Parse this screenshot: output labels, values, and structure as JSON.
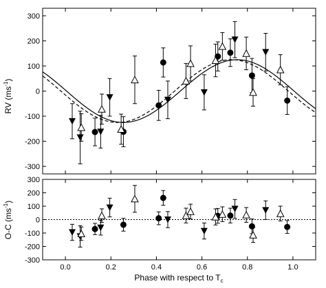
{
  "chart_data": [
    {
      "type": "scatter",
      "ylabel": "RV (ms",
      "ylabel_sup": "-1",
      "ylabel_tail": ")",
      "xlim": [
        -0.1,
        1.1
      ],
      "ylim": [
        -330,
        330
      ],
      "yticks": [
        -300,
        -200,
        -100,
        0,
        100,
        200,
        300
      ],
      "xticks": [
        0.0,
        0.2,
        0.4,
        0.6,
        0.8,
        1.0
      ],
      "ytick_labels": [
        "-300",
        "-200",
        "-100",
        "0",
        "100",
        "200",
        "300"
      ],
      "series": [
        {
          "marker": "filled-circle",
          "points": [
            {
              "x": 0.13,
              "y": -163,
              "err": 55
            },
            {
              "x": 0.255,
              "y": -162,
              "err": 60
            },
            {
              "x": 0.41,
              "y": -57,
              "err": 60
            },
            {
              "x": 0.43,
              "y": 114,
              "err": 58
            },
            {
              "x": 0.67,
              "y": 138,
              "err": 58
            },
            {
              "x": 0.725,
              "y": 153,
              "err": 55
            },
            {
              "x": 0.82,
              "y": 62,
              "err": 68
            },
            {
              "x": 0.975,
              "y": -38,
              "err": 55
            }
          ]
        },
        {
          "marker": "filled-triangle-down",
          "points": [
            {
              "x": 0.03,
              "y": -120,
              "err": 70
            },
            {
              "x": 0.065,
              "y": -185,
              "err": 105
            },
            {
              "x": 0.155,
              "y": -162,
              "err": 65
            },
            {
              "x": 0.195,
              "y": -25,
              "err": 75
            },
            {
              "x": 0.45,
              "y": -35,
              "err": 75
            },
            {
              "x": 0.61,
              "y": -5,
              "err": 70
            },
            {
              "x": 0.745,
              "y": 205,
              "err": 72
            },
            {
              "x": 0.88,
              "y": 155,
              "err": 75
            }
          ]
        },
        {
          "marker": "open-triangle-up",
          "points": [
            {
              "x": 0.07,
              "y": -145,
              "err": 55
            },
            {
              "x": 0.16,
              "y": -72,
              "err": 60
            },
            {
              "x": 0.245,
              "y": -152,
              "err": 60
            },
            {
              "x": 0.305,
              "y": 45,
              "err": 95
            },
            {
              "x": 0.53,
              "y": 40,
              "err": 70
            },
            {
              "x": 0.55,
              "y": 110,
              "err": 70
            },
            {
              "x": 0.66,
              "y": 122,
              "err": 65
            },
            {
              "x": 0.69,
              "y": 178,
              "err": 55
            },
            {
              "x": 0.795,
              "y": 150,
              "err": 65
            },
            {
              "x": 0.825,
              "y": -5,
              "err": 55
            },
            {
              "x": 0.945,
              "y": 85,
              "err": 60
            }
          ]
        }
      ],
      "models": [
        {
          "style": "solid",
          "K": 125,
          "phase_shift": 0.755
        },
        {
          "style": "dashed",
          "K": 125,
          "phase_shift": 0.73
        }
      ]
    },
    {
      "type": "scatter",
      "xlabel": "Phase with respect to T",
      "xlabel_sub": "c",
      "ylabel": "O-C (ms",
      "ylabel_sup": "-1",
      "ylabel_tail": ")",
      "xlim": [
        -0.1,
        1.1
      ],
      "ylim": [
        -300,
        300
      ],
      "yticks": [
        -300,
        -200,
        -100,
        0,
        100,
        200,
        300
      ],
      "xticks": [
        0.0,
        0.2,
        0.4,
        0.6,
        0.8,
        1.0
      ],
      "ytick_labels": [
        "-300",
        "-200",
        "-100",
        "0",
        "100",
        "200",
        "300"
      ],
      "xtick_labels": [
        "0.0",
        "0.2",
        "0.4",
        "0.6",
        "0.8",
        "1.0"
      ],
      "zero_line": "dotted",
      "series": [
        {
          "marker": "filled-circle",
          "points": [
            {
              "x": 0.13,
              "y": -70,
              "err": 42
            },
            {
              "x": 0.255,
              "y": -38,
              "err": 48
            },
            {
              "x": 0.41,
              "y": 10,
              "err": 48
            },
            {
              "x": 0.43,
              "y": 162,
              "err": 55
            },
            {
              "x": 0.67,
              "y": 28,
              "err": 55
            },
            {
              "x": 0.725,
              "y": 30,
              "err": 55
            },
            {
              "x": 0.82,
              "y": -50,
              "err": 55
            },
            {
              "x": 0.975,
              "y": -55,
              "err": 48
            }
          ]
        },
        {
          "marker": "filled-triangle-down",
          "points": [
            {
              "x": 0.03,
              "y": -95,
              "err": 60
            },
            {
              "x": 0.065,
              "y": -125,
              "err": 80
            },
            {
              "x": 0.155,
              "y": -60,
              "err": 55
            },
            {
              "x": 0.195,
              "y": 90,
              "err": 70
            },
            {
              "x": 0.45,
              "y": 0,
              "err": 60
            },
            {
              "x": 0.61,
              "y": -85,
              "err": 60
            },
            {
              "x": 0.745,
              "y": 80,
              "err": 70
            },
            {
              "x": 0.88,
              "y": 70,
              "err": 70
            }
          ]
        },
        {
          "marker": "open-triangle-up",
          "points": [
            {
              "x": 0.07,
              "y": -105,
              "err": 50
            },
            {
              "x": 0.16,
              "y": 30,
              "err": 50
            },
            {
              "x": 0.305,
              "y": 155,
              "err": 100
            },
            {
              "x": 0.53,
              "y": 30,
              "err": 55
            },
            {
              "x": 0.55,
              "y": 60,
              "err": 55
            },
            {
              "x": 0.66,
              "y": 20,
              "err": 60
            },
            {
              "x": 0.69,
              "y": 40,
              "err": 55
            },
            {
              "x": 0.795,
              "y": 35,
              "err": 55
            },
            {
              "x": 0.825,
              "y": -115,
              "err": 55
            },
            {
              "x": 0.945,
              "y": 45,
              "err": 55
            }
          ]
        }
      ]
    }
  ]
}
